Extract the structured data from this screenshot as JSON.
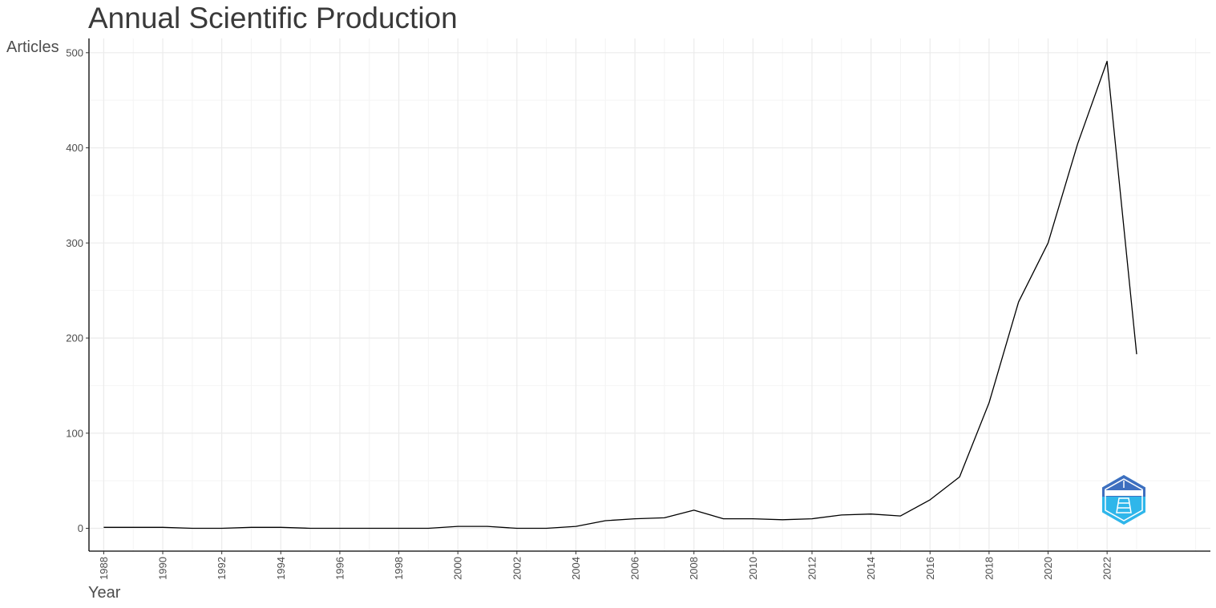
{
  "chart_data": {
    "type": "line",
    "title": "Annual Scientific Production",
    "xlabel": "Year",
    "ylabel": "Articles",
    "xlim": [
      1987.5,
      2025.5
    ],
    "ylim": [
      -24,
      515
    ],
    "x_ticks": [
      1988,
      1990,
      1992,
      1994,
      1996,
      1998,
      2000,
      2002,
      2004,
      2006,
      2008,
      2010,
      2012,
      2014,
      2016,
      2018,
      2020,
      2022
    ],
    "y_ticks": [
      0,
      100,
      200,
      300,
      400,
      500
    ],
    "grid": true,
    "x": [
      1988,
      1989,
      1990,
      1991,
      1992,
      1993,
      1994,
      1995,
      1996,
      1997,
      1998,
      1999,
      2000,
      2001,
      2002,
      2003,
      2004,
      2005,
      2006,
      2007,
      2008,
      2009,
      2010,
      2011,
      2012,
      2013,
      2014,
      2015,
      2016,
      2017,
      2018,
      2019,
      2020,
      2021,
      2022,
      2023
    ],
    "values": [
      1,
      1,
      1,
      0,
      0,
      1,
      1,
      0,
      0,
      0,
      0,
      0,
      2,
      2,
      0,
      0,
      2,
      8,
      10,
      11,
      19,
      10,
      10,
      9,
      10,
      14,
      15,
      13,
      30,
      54,
      132,
      238,
      300,
      404,
      491,
      183
    ],
    "line_color": "#000000",
    "logo": "bibliometrix-logo"
  }
}
